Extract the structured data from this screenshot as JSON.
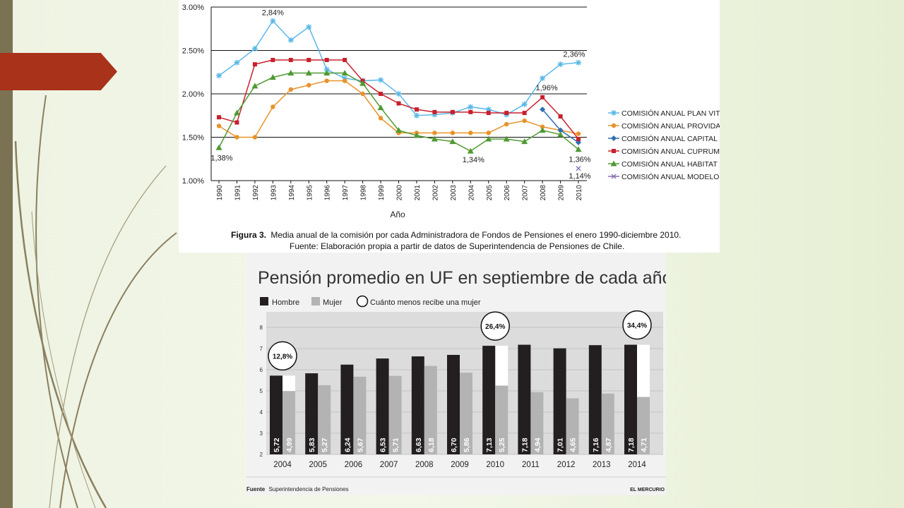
{
  "slide": {
    "colors": {
      "left_bar": "#7b7153",
      "arrow": "#a9321a",
      "background": "#eef3e2"
    }
  },
  "chart_data": [
    {
      "type": "line",
      "xlabel": "Año",
      "ylabel": "",
      "ylim": [
        1.0,
        3.0
      ],
      "y_ticks": [
        "1.00%",
        "1.50%",
        "2.00%",
        "2.50%",
        "3.00%"
      ],
      "x": [
        1990,
        1991,
        1992,
        1993,
        1994,
        1995,
        1996,
        1997,
        1998,
        1999,
        2000,
        2001,
        2002,
        2003,
        2004,
        2005,
        2006,
        2007,
        2008,
        2009,
        2010
      ],
      "series": [
        {
          "name": "COMISIÓN ANUAL PLAN VITAL",
          "color": "#5bb8e8",
          "marker": "star",
          "values": [
            2.21,
            2.36,
            2.52,
            2.84,
            2.62,
            2.77,
            2.28,
            2.18,
            2.15,
            2.16,
            2.0,
            1.75,
            1.76,
            1.78,
            1.85,
            1.82,
            1.76,
            1.88,
            2.18,
            2.34,
            2.36
          ]
        },
        {
          "name": "COMISIÓN ANUAL PROVIDA",
          "color": "#e8922a",
          "marker": "circle",
          "values": [
            1.63,
            1.5,
            1.5,
            1.85,
            2.05,
            2.1,
            2.15,
            2.15,
            2.0,
            1.72,
            1.55,
            1.55,
            1.55,
            1.55,
            1.55,
            1.55,
            1.65,
            1.69,
            1.62,
            1.58,
            1.54
          ]
        },
        {
          "name": "COMISIÓN ANUAL CAPITAL",
          "color": "#2f6fb3",
          "marker": "diamond",
          "values": [
            null,
            null,
            null,
            null,
            null,
            null,
            null,
            null,
            null,
            null,
            null,
            null,
            null,
            null,
            null,
            null,
            null,
            null,
            1.82,
            1.58,
            1.44
          ]
        },
        {
          "name": "COMISIÓN ANUAL CUPRUM",
          "color": "#c8202e",
          "marker": "square",
          "values": [
            1.73,
            1.67,
            2.34,
            2.39,
            2.39,
            2.39,
            2.39,
            2.39,
            2.15,
            2.0,
            1.89,
            1.82,
            1.79,
            1.79,
            1.79,
            1.78,
            1.78,
            1.78,
            1.96,
            1.74,
            1.48
          ]
        },
        {
          "name": "COMISIÓN ANUAL HABITAT",
          "color": "#4f9a32",
          "marker": "triangle",
          "values": [
            1.38,
            1.78,
            2.09,
            2.19,
            2.24,
            2.24,
            2.24,
            2.24,
            2.12,
            1.84,
            1.58,
            1.52,
            1.48,
            1.45,
            1.34,
            1.48,
            1.48,
            1.45,
            1.58,
            1.53,
            1.36
          ]
        },
        {
          "name": "COMISIÓN ANUAL MODELO",
          "color": "#8a6fb0",
          "marker": "x",
          "values": [
            null,
            null,
            null,
            null,
            null,
            null,
            null,
            null,
            null,
            null,
            null,
            null,
            null,
            null,
            null,
            null,
            null,
            null,
            null,
            null,
            1.14
          ]
        }
      ],
      "annotations": [
        "2,84%",
        "2,36%",
        "1,96%",
        "1,38%",
        "1,34%",
        "1,36%",
        "1,14%"
      ],
      "caption_bold": "Figura 3.",
      "caption": "Media anual de la comisión por cada Administradora de Fondos de Pensiones el enero 1990-diciembre 2010.",
      "source": "Fuente: Elaboración propia a partir de datos de Superintendencia de Pensiones de Chile."
    },
    {
      "type": "bar",
      "title": "Pensión promedio en UF en septiembre de cada año",
      "ylim": [
        2,
        8
      ],
      "y_ticks": [
        "2",
        "3",
        "4",
        "5",
        "6",
        "7",
        "8"
      ],
      "categories": [
        "2004",
        "2005",
        "2006",
        "2007",
        "2008",
        "2009",
        "2010",
        "2011",
        "2012",
        "2013",
        "2014"
      ],
      "series": [
        {
          "name": "Hombre",
          "color": "#231f20",
          "values": [
            5.72,
            5.83,
            6.24,
            6.53,
            6.63,
            6.7,
            7.13,
            7.18,
            7.01,
            7.16,
            7.18
          ],
          "labels": [
            "5,72",
            "5,83",
            "6,24",
            "6,53",
            "6,63",
            "6,70",
            "7,13",
            "7,18",
            "7,01",
            "7,16",
            "7,18"
          ]
        },
        {
          "name": "Mujer",
          "color": "#b3b3b3",
          "values": [
            4.99,
            5.27,
            5.67,
            5.71,
            6.18,
            5.86,
            5.25,
            4.94,
            4.65,
            4.87,
            4.71
          ],
          "labels": [
            "4,99",
            "5,27",
            "5,67",
            "5,71",
            "6,18",
            "5,86",
            "5,25",
            "4,94",
            "4,65",
            "4,87",
            "4,71"
          ]
        }
      ],
      "legend_gap_label": "Cuánto menos recibe una mujer",
      "gap_callouts": [
        {
          "year": "2004",
          "text": "12,8%"
        },
        {
          "year": "2010",
          "text": "26,4%"
        },
        {
          "year": "2014",
          "text": "34,4%"
        }
      ],
      "source_bold": "Fuente",
      "source": "Superintendencia de Pensiones",
      "brand": "EL MERCURIO"
    }
  ]
}
